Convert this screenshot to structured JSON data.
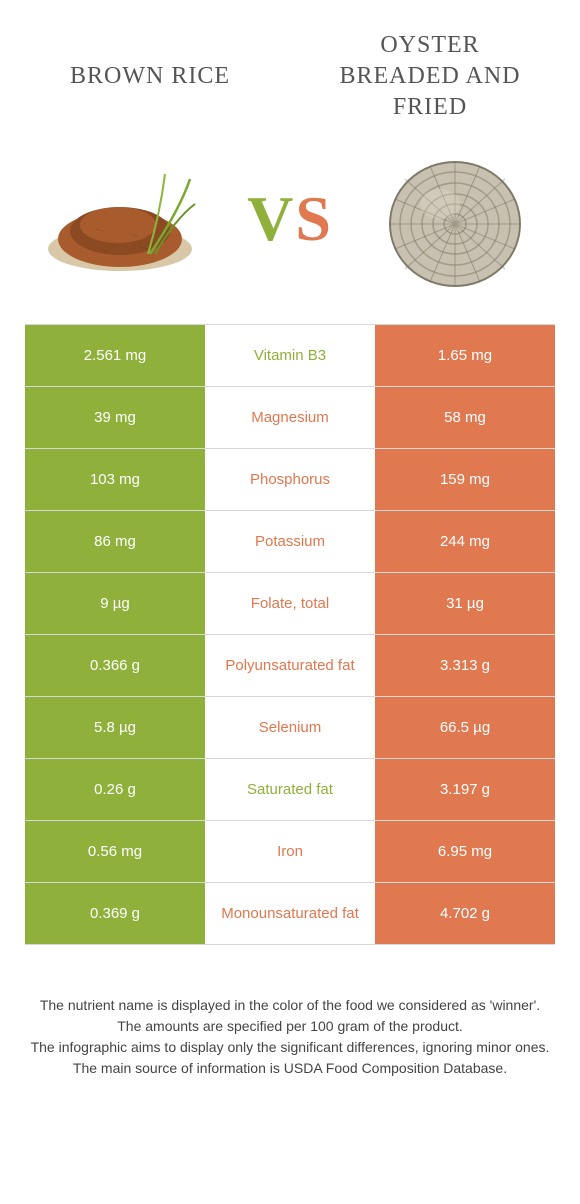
{
  "titles": {
    "left": "BROWN RICE",
    "right": "OYSTER BREADED AND FRIED"
  },
  "vs": {
    "v": "V",
    "s": "S"
  },
  "colors": {
    "left_bg": "#8fb13b",
    "right_bg": "#e07850",
    "border": "#d8d8d8",
    "text_white": "#ffffff"
  },
  "rows": [
    {
      "left": "2.561 mg",
      "label": "Vitamin B3",
      "right": "1.65 mg",
      "label_color": "#8fb13b"
    },
    {
      "left": "39 mg",
      "label": "Magnesium",
      "right": "58 mg",
      "label_color": "#e07850"
    },
    {
      "left": "103 mg",
      "label": "Phosphorus",
      "right": "159 mg",
      "label_color": "#e07850"
    },
    {
      "left": "86 mg",
      "label": "Potassium",
      "right": "244 mg",
      "label_color": "#e07850"
    },
    {
      "left": "9 µg",
      "label": "Folate, total",
      "right": "31 µg",
      "label_color": "#e07850"
    },
    {
      "left": "0.366 g",
      "label": "Polyunsaturated fat",
      "right": "3.313 g",
      "label_color": "#e07850"
    },
    {
      "left": "5.8 µg",
      "label": "Selenium",
      "right": "66.5 µg",
      "label_color": "#e07850"
    },
    {
      "left": "0.26 g",
      "label": "Saturated fat",
      "right": "3.197 g",
      "label_color": "#8fb13b"
    },
    {
      "left": "0.56 mg",
      "label": "Iron",
      "right": "6.95 mg",
      "label_color": "#e07850"
    },
    {
      "left": "0.369 g",
      "label": "Monounsaturated fat",
      "right": "4.702 g",
      "label_color": "#e07850"
    }
  ],
  "footnotes": {
    "l1": "The nutrient name is displayed in the color of the food we considered as 'winner'.",
    "l2": "The amounts are specified per 100 gram of the product.",
    "l3": "The infographic aims to display only the significant differences, ignoring minor ones.",
    "l4": "The main source of information is USDA Food Composition Database."
  }
}
